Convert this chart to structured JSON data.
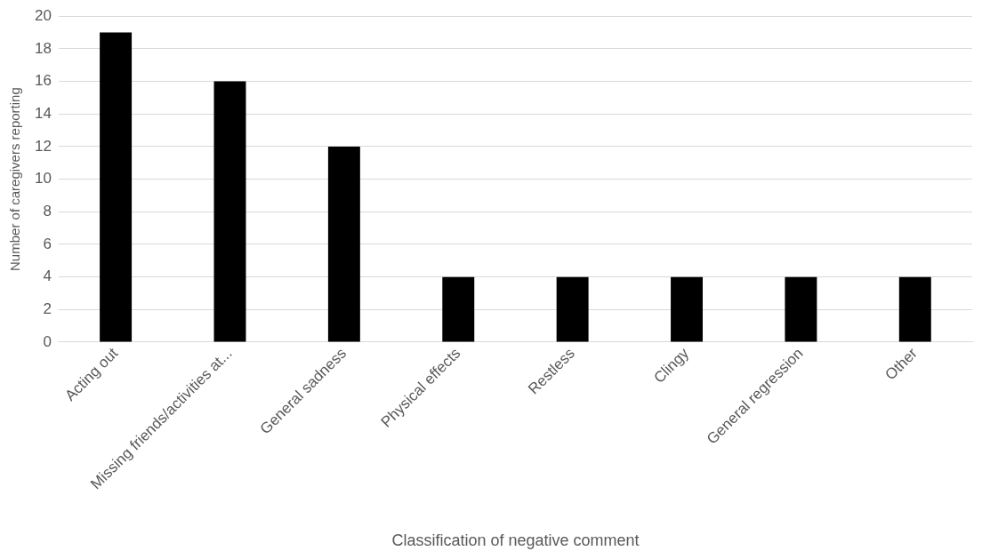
{
  "chart_data": {
    "type": "bar",
    "xlabel": "Classification of negative comment",
    "ylabel": "Number of caregivers reporting",
    "categories": [
      "Acting out",
      "Missing friends/activities at...",
      "General sadness",
      "Physical effects",
      "Restless",
      "Clingy",
      "General regression",
      "Other"
    ],
    "values": [
      19,
      16,
      12,
      4,
      4,
      4,
      4,
      4
    ],
    "color": "#000000",
    "ylim": [
      0,
      20
    ],
    "yticks": [
      0,
      2,
      4,
      6,
      8,
      10,
      12,
      14,
      16,
      18,
      20
    ],
    "grid": "y",
    "legend": false
  }
}
